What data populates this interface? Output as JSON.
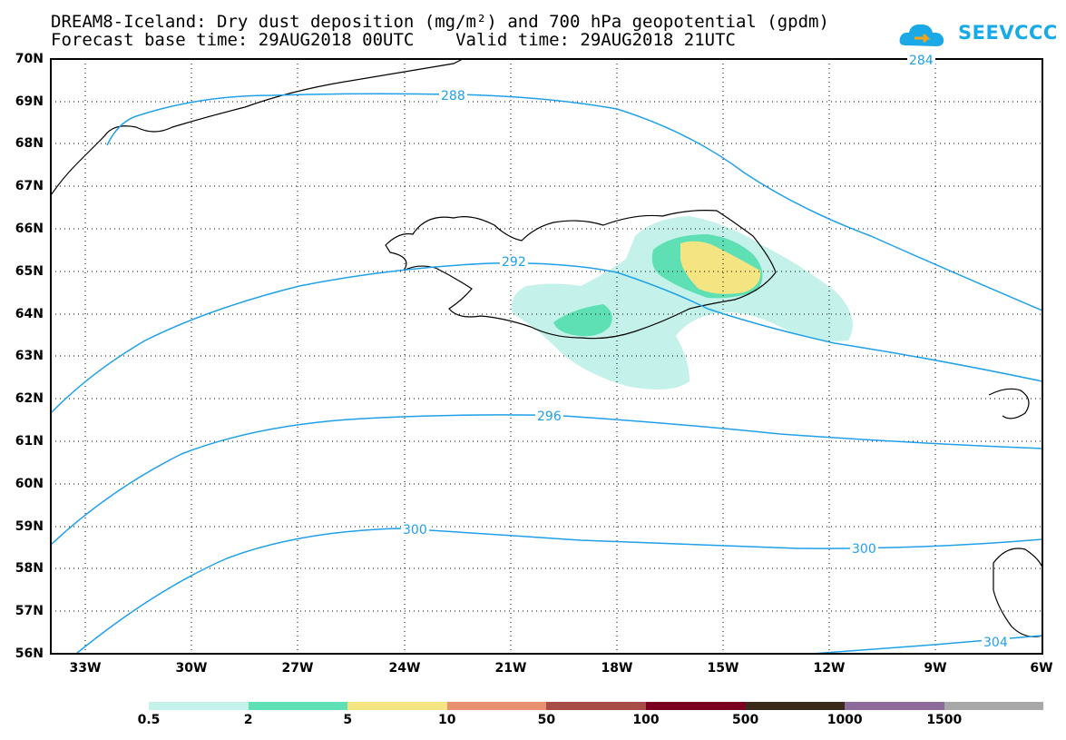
{
  "title": {
    "line1": "DREAM8-Iceland: Dry dust deposition (mg/m²) and 700 hPa geopotential (gpdm)",
    "line2": "Forecast base time: 29AUG2018 00UTC    Valid time: 29AUG2018 21UTC"
  },
  "logo": {
    "text": "SEEVCCC"
  },
  "axes": {
    "lat_labels": [
      "70N",
      "69N",
      "68N",
      "67N",
      "66N",
      "65N",
      "64N",
      "63N",
      "62N",
      "61N",
      "60N",
      "59N",
      "58N",
      "57N",
      "56N"
    ],
    "lon_labels": [
      "33W",
      "30W",
      "27W",
      "24W",
      "21W",
      "18W",
      "15W",
      "12W",
      "9W",
      "6W"
    ]
  },
  "contours": [
    {
      "label": "284"
    },
    {
      "label": "288"
    },
    {
      "label": "292"
    },
    {
      "label": "296"
    },
    {
      "label": "300"
    },
    {
      "label": "300"
    },
    {
      "label": "304"
    }
  ],
  "colorbar": {
    "labels": [
      "0.5",
      "2",
      "5",
      "10",
      "50",
      "100",
      "500",
      "1000",
      "1500"
    ],
    "colors": [
      "#c4f2ea",
      "#5fe0b4",
      "#f4e582",
      "#e89070",
      "#a84c48",
      "#7a0020",
      "#3a2a1c",
      "#8c6a9a",
      "#a8a8a8"
    ]
  },
  "colors": {
    "contour": "#1fa0e8",
    "dust_low": "#c4f2ea",
    "dust_mid": "#5fe0b4",
    "dust_high": "#f4e582"
  }
}
